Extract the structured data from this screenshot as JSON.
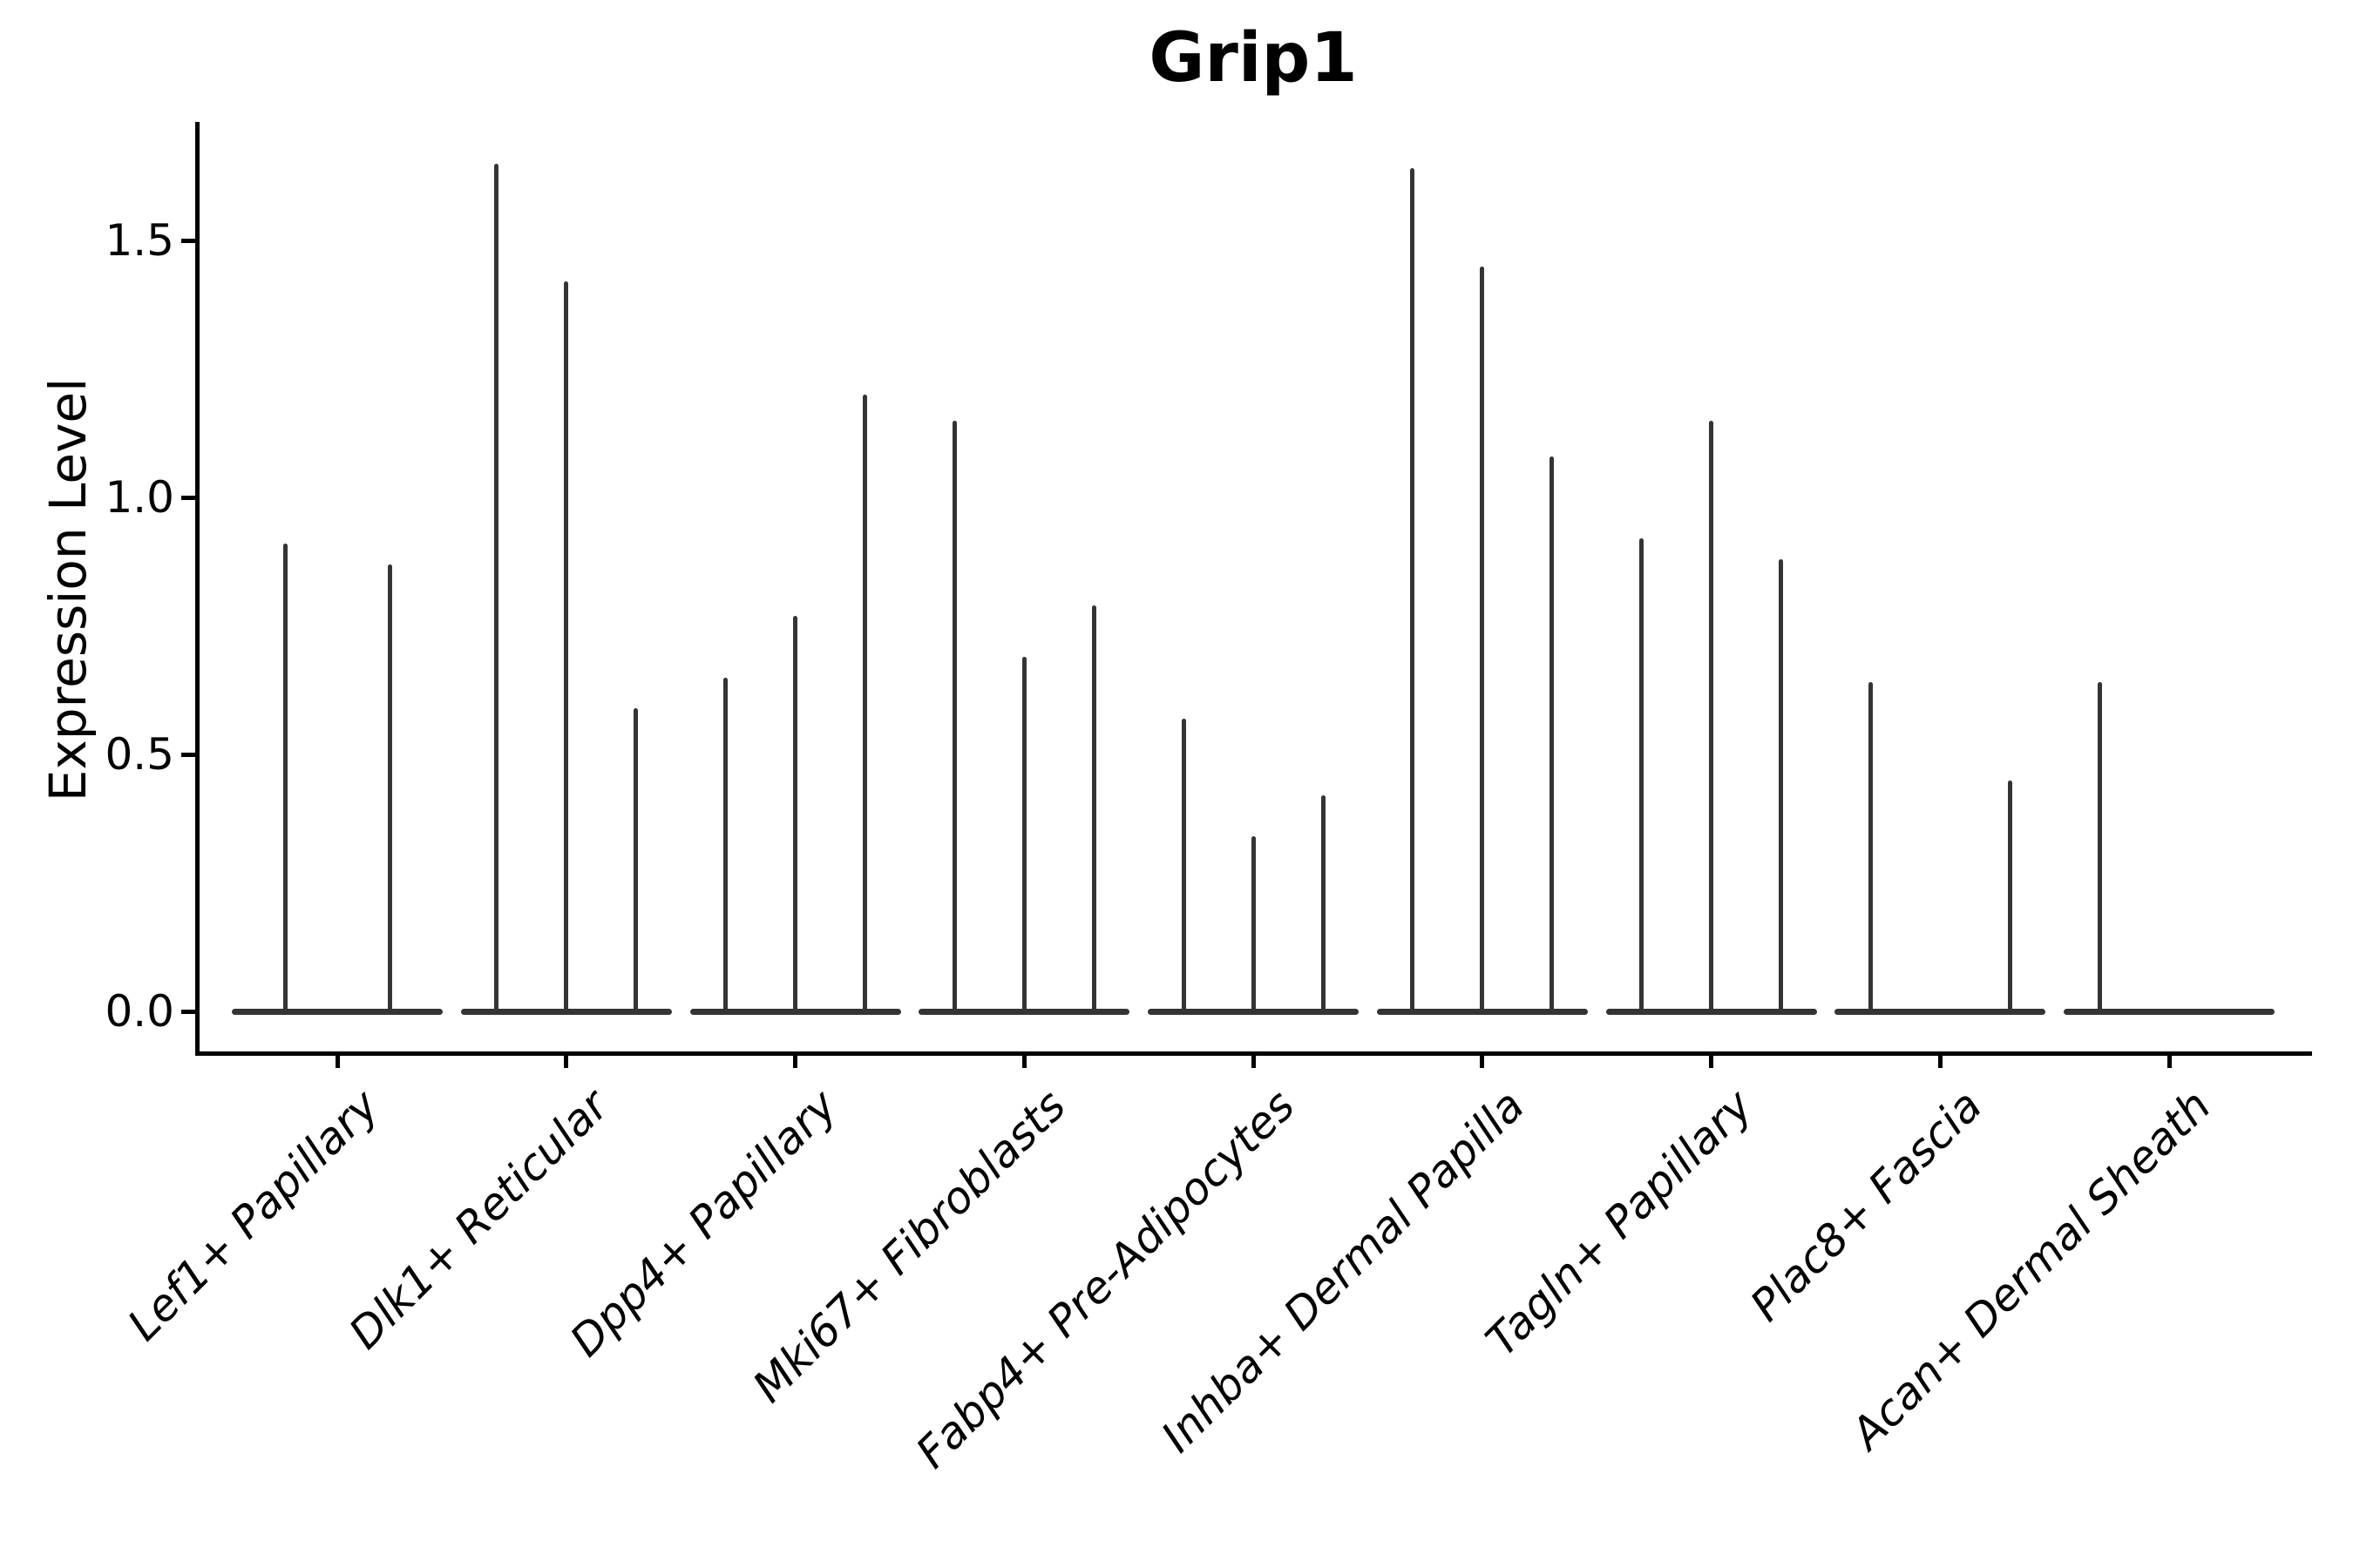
{
  "title": "Grip1",
  "y_axis": {
    "label": "Expression Level",
    "tick_labels": [
      "0.0",
      "0.5",
      "1.0",
      "1.5"
    ]
  },
  "chart_data": {
    "type": "violin",
    "title": "Grip1",
    "xlabel": "",
    "ylabel": "Expression Level",
    "ylim": [
      -0.08,
      1.74
    ],
    "yticks": [
      0.0,
      0.5,
      1.0,
      1.5
    ],
    "grid": false,
    "legend": "none",
    "description": "Single-gene violin plot; each cluster holds 2-3 ultra-thin violins (spikes) rising from a flat baseline at expression 0; values are the max expression reached by each violin spike.",
    "categories": [
      "Lef1+ Papillary",
      "Dlk1+ Reticular",
      "Dpp4+ Papillary",
      "Mki67+ Fibroblasts",
      "Fabp4+ Pre-Adipocytes",
      "Inhba+ Dermal Papilla",
      "Tagln+ Papillary",
      "Plac8+ Fascia",
      "Acan+ Dermal Sheath"
    ],
    "groups": [
      {
        "category": "Lef1+ Papillary",
        "violins": [
          {
            "offset": -60,
            "max": 0.91
          },
          {
            "offset": 60,
            "max": 0.87
          }
        ]
      },
      {
        "category": "Dlk1+ Reticular",
        "violins": [
          {
            "offset": -80,
            "max": 1.65
          },
          {
            "offset": 0,
            "max": 1.42
          },
          {
            "offset": 80,
            "max": 0.59
          }
        ]
      },
      {
        "category": "Dpp4+ Papillary",
        "violins": [
          {
            "offset": -80,
            "max": 0.65
          },
          {
            "offset": 0,
            "max": 0.77
          },
          {
            "offset": 80,
            "max": 1.2
          }
        ]
      },
      {
        "category": "Mki67+ Fibroblasts",
        "violins": [
          {
            "offset": -80,
            "max": 1.15
          },
          {
            "offset": 0,
            "max": 0.69
          },
          {
            "offset": 80,
            "max": 0.79
          }
        ]
      },
      {
        "category": "Fabp4+ Pre-Adipocytes",
        "violins": [
          {
            "offset": -80,
            "max": 0.57
          },
          {
            "offset": 0,
            "max": 0.34
          },
          {
            "offset": 80,
            "max": 0.42
          }
        ]
      },
      {
        "category": "Inhba+ Dermal Papilla",
        "violins": [
          {
            "offset": -80,
            "max": 1.64
          },
          {
            "offset": 0,
            "max": 1.45
          },
          {
            "offset": 80,
            "max": 1.08
          }
        ]
      },
      {
        "category": "Tagln+ Papillary",
        "violins": [
          {
            "offset": -80,
            "max": 0.92
          },
          {
            "offset": 0,
            "max": 1.15
          },
          {
            "offset": 80,
            "max": 0.88
          }
        ]
      },
      {
        "category": "Plac8+ Fascia",
        "violins": [
          {
            "offset": -80,
            "max": 0.64
          },
          {
            "offset": 0,
            "max": 0.0
          },
          {
            "offset": 80,
            "max": 0.45
          }
        ]
      },
      {
        "category": "Acan+ Dermal Sheath",
        "violins": [
          {
            "offset": -80,
            "max": 0.64
          },
          {
            "offset": 0,
            "max": 0.0
          },
          {
            "offset": 80,
            "max": 0.0
          }
        ]
      }
    ],
    "colors": {
      "violin": "#343434",
      "axis": "#000000",
      "text": "#000000",
      "background": "#ffffff"
    }
  }
}
